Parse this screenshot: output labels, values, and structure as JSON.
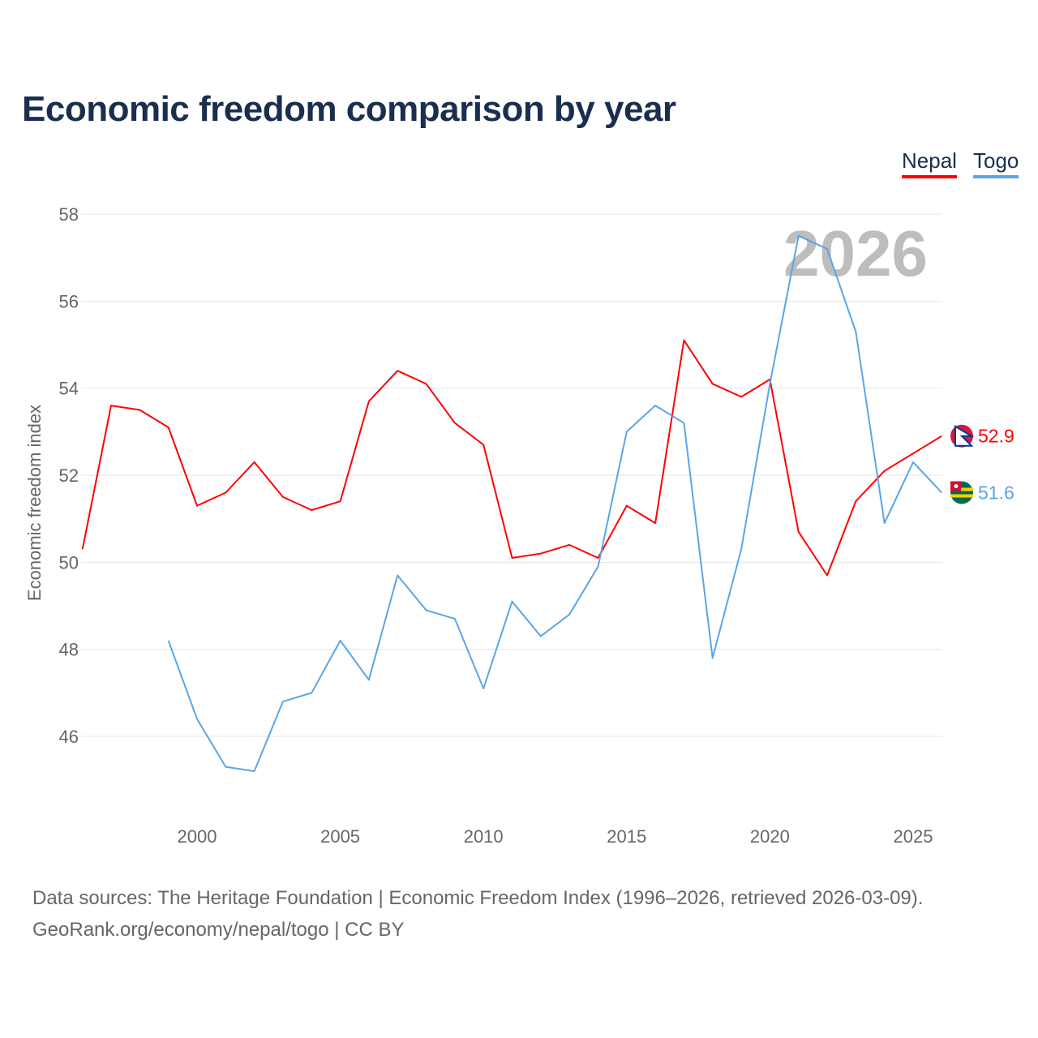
{
  "title": "Economic freedom comparison by year",
  "legend": [
    {
      "label": "Nepal",
      "color": "#ff0000"
    },
    {
      "label": "Togo",
      "color": "#5aa5e8"
    }
  ],
  "watermark_year": "2026",
  "source_line1": "Data sources: The Heritage Foundation | Economic Freedom Index (1996–2026, retrieved 2026-03-09).",
  "source_line2": "GeoRank.org/economy/nepal/togo | CC BY",
  "chart_data": {
    "type": "line",
    "title": "Economic freedom comparison by year",
    "xlabel": "",
    "ylabel": "Economic freedom index",
    "xlim": [
      1996,
      2026
    ],
    "ylim": [
      44,
      58
    ],
    "yticks": [
      46,
      48,
      50,
      52,
      54,
      56,
      58
    ],
    "xticks": [
      2000,
      2005,
      2010,
      2015,
      2020,
      2025
    ],
    "grid": true,
    "legend_position": "top-right",
    "series": [
      {
        "name": "Nepal",
        "color": "#ff0000",
        "end_label": "52.9",
        "icon": "nepal-flag-icon",
        "x": [
          1996,
          1997,
          1998,
          1999,
          2000,
          2001,
          2002,
          2003,
          2004,
          2005,
          2006,
          2007,
          2008,
          2009,
          2010,
          2011,
          2012,
          2013,
          2014,
          2015,
          2016,
          2017,
          2018,
          2019,
          2020,
          2021,
          2022,
          2023,
          2024,
          2025,
          2026
        ],
        "values": [
          50.3,
          53.6,
          53.5,
          53.1,
          51.3,
          51.6,
          52.3,
          51.5,
          51.2,
          51.4,
          53.7,
          54.4,
          54.1,
          53.2,
          52.7,
          50.1,
          50.2,
          50.4,
          50.1,
          51.3,
          50.9,
          55.1,
          54.1,
          53.8,
          54.2,
          50.7,
          49.7,
          51.4,
          52.1,
          52.5,
          52.9
        ]
      },
      {
        "name": "Togo",
        "color": "#5aa5e8",
        "end_label": "51.6",
        "icon": "togo-flag-icon",
        "x": [
          1999,
          2000,
          2001,
          2002,
          2003,
          2004,
          2005,
          2006,
          2007,
          2008,
          2009,
          2010,
          2011,
          2012,
          2013,
          2014,
          2015,
          2016,
          2017,
          2018,
          2019,
          2020,
          2021,
          2022,
          2023,
          2024,
          2025,
          2026
        ],
        "values": [
          48.2,
          46.4,
          45.3,
          45.2,
          46.8,
          47.0,
          48.2,
          47.3,
          49.7,
          48.9,
          48.7,
          47.1,
          49.1,
          48.3,
          48.8,
          49.9,
          53.0,
          53.6,
          53.2,
          47.8,
          50.3,
          54.1,
          57.5,
          57.2,
          55.3,
          50.9,
          52.3,
          51.6
        ]
      }
    ]
  }
}
